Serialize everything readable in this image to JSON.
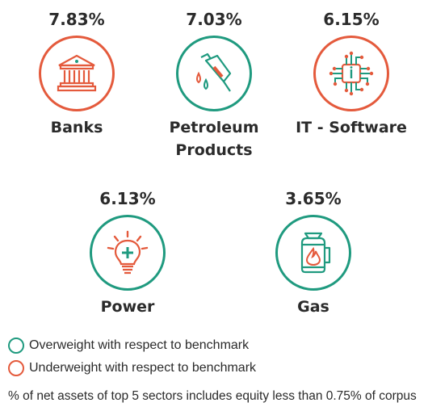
{
  "colors": {
    "overweight": "#1f9a7f",
    "underweight": "#e45a3c",
    "text": "#2b2b2b"
  },
  "sectors": [
    {
      "name": "Banks",
      "percent": "7.83%",
      "weight": "underweight",
      "icon": "bank-building-icon"
    },
    {
      "name": "Petroleum Products",
      "percent": "7.03%",
      "weight": "overweight",
      "icon": "fuel-nozzle-icon"
    },
    {
      "name": "IT - Software",
      "percent": "6.15%",
      "weight": "underweight",
      "icon": "circuit-chip-icon"
    },
    {
      "name": "Power",
      "percent": "6.13%",
      "weight": "overweight",
      "icon": "light-bulb-icon"
    },
    {
      "name": "Gas",
      "percent": "3.65%",
      "weight": "overweight",
      "icon": "gas-cylinder-icon"
    }
  ],
  "legend": {
    "overweight": "Overweight with respect to benchmark",
    "underweight": "Underweight with respect to benchmark"
  },
  "footnote": "% of net assets of top 5 sectors includes equity less than 0.75% of corpus"
}
